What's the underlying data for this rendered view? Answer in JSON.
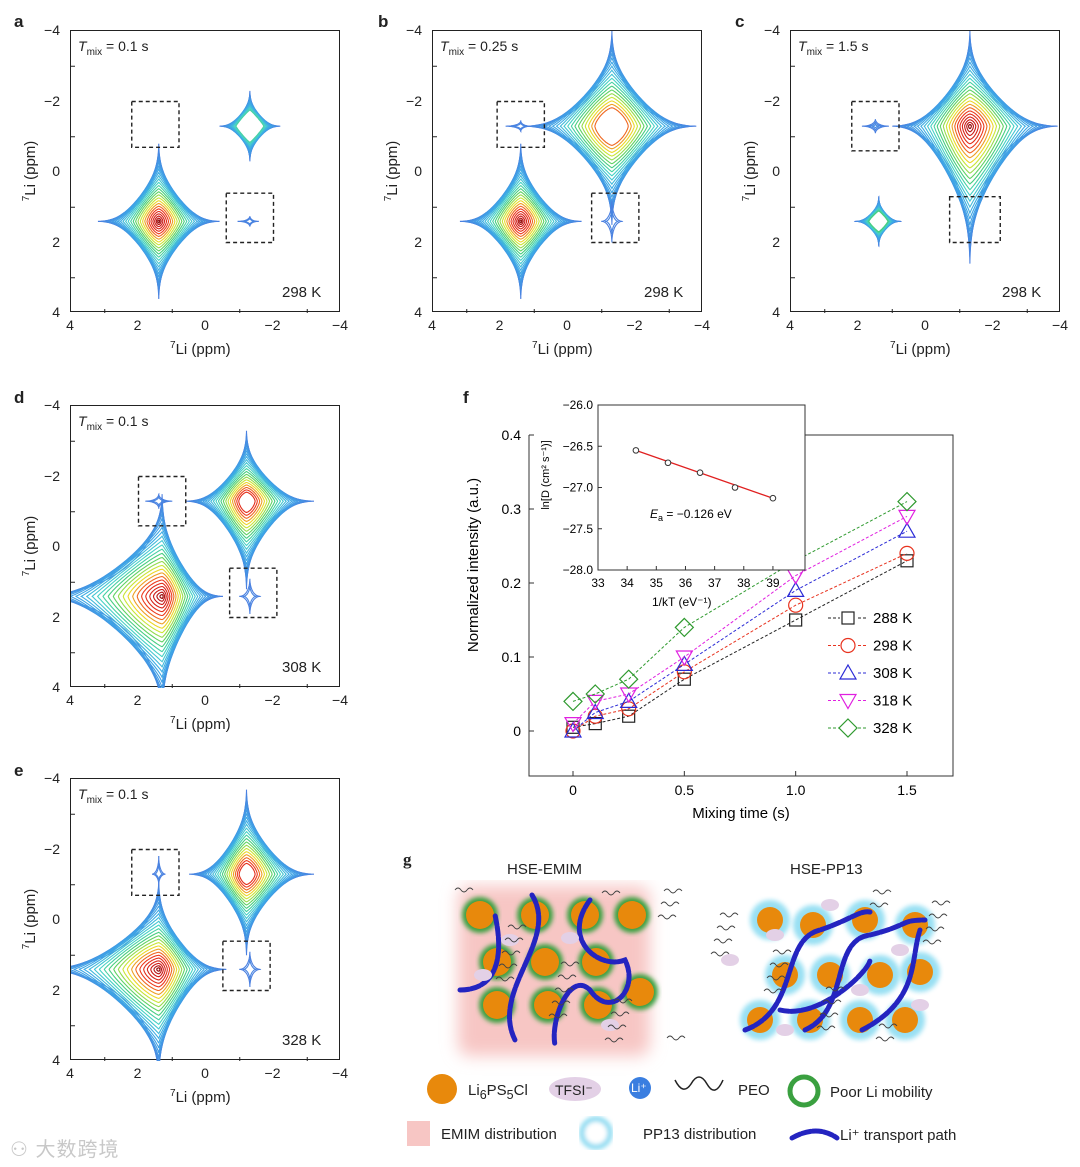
{
  "panel_letters": {
    "a": "a",
    "b": "b",
    "c": "c",
    "d": "d",
    "e": "e",
    "f": "f",
    "g": "g"
  },
  "contour_panels": [
    {
      "id": "a",
      "tmix": "0.1 s",
      "temperature": "298 K",
      "peaks": [
        {
          "x": 1.4,
          "y": 1.4,
          "ext": [
            1.8,
            1.8,
            2.2,
            2.2
          ],
          "levels": 26
        },
        {
          "x": -1.3,
          "y": -1.3,
          "ext": [
            0.9,
            0.9,
            1.0,
            1.0
          ],
          "levels": 13
        },
        {
          "x": -1.3,
          "y": 1.4,
          "ext": [
            0.35,
            0.25,
            0.15,
            0.15
          ],
          "levels": 2
        }
      ],
      "boxes": [
        [
          2.2,
          0.8,
          -2.0,
          -0.7
        ],
        [
          -0.6,
          -2.0,
          0.6,
          2.0
        ]
      ]
    },
    {
      "id": "b",
      "tmix": "0.25 s",
      "temperature": "298 K",
      "peaks": [
        {
          "x": 1.4,
          "y": 1.4,
          "ext": [
            1.8,
            1.8,
            2.2,
            2.2
          ],
          "levels": 26
        },
        {
          "x": -1.3,
          "y": -1.3,
          "ext": [
            2.6,
            2.5,
            2.7,
            2.8
          ],
          "levels": 20
        },
        {
          "x": 1.4,
          "y": -1.3,
          "ext": [
            0.45,
            0.3,
            0.15,
            0.15
          ],
          "levels": 2
        },
        {
          "x": -1.3,
          "y": 1.4,
          "ext": [
            0.3,
            0.3,
            0.6,
            0.6
          ],
          "levels": 2
        }
      ],
      "boxes": [
        [
          2.1,
          0.7,
          -2.0,
          -0.7
        ],
        [
          -0.7,
          -2.1,
          0.6,
          2.0
        ]
      ]
    },
    {
      "id": "c",
      "tmix": "1.5 s",
      "temperature": "298 K",
      "peaks": [
        {
          "x": 1.4,
          "y": 1.4,
          "ext": [
            0.7,
            0.65,
            0.7,
            0.7
          ],
          "levels": 14
        },
        {
          "x": -1.3,
          "y": -1.3,
          "ext": [
            2.3,
            2.6,
            2.7,
            3.9
          ],
          "levels": 26
        },
        {
          "x": 1.5,
          "y": -1.3,
          "ext": [
            0.4,
            0.4,
            0.2,
            0.2
          ],
          "levels": 3
        }
      ],
      "boxes": [
        [
          2.2,
          0.8,
          -2.0,
          -0.6
        ],
        [
          -0.7,
          -2.2,
          0.7,
          2.0
        ]
      ]
    },
    {
      "id": "d",
      "tmix": "0.1 s",
      "temperature": "308 K",
      "peaks": [
        {
          "x": 1.3,
          "y": 1.4,
          "ext": [
            3.8,
            1.8,
            2.9,
            3.4
          ],
          "levels": 26
        },
        {
          "x": -1.2,
          "y": -1.3,
          "ext": [
            1.8,
            2.0,
            2.0,
            2.5
          ],
          "levels": 22
        },
        {
          "x": 1.4,
          "y": -1.3,
          "ext": [
            0.4,
            0.4,
            0.2,
            0.2
          ],
          "levels": 2
        },
        {
          "x": -1.3,
          "y": 1.4,
          "ext": [
            0.3,
            0.3,
            0.5,
            0.5
          ],
          "levels": 2
        }
      ],
      "boxes": [
        [
          2.0,
          0.6,
          -2.0,
          -0.6
        ],
        [
          -0.7,
          -2.1,
          0.6,
          2.0
        ]
      ]
    },
    {
      "id": "e",
      "tmix": "0.1 s",
      "temperature": "328 K",
      "peaks": [
        {
          "x": 1.4,
          "y": 1.4,
          "ext": [
            3.5,
            2.0,
            2.5,
            3.1
          ],
          "levels": 26
        },
        {
          "x": -1.2,
          "y": -1.3,
          "ext": [
            1.7,
            2.0,
            2.4,
            2.3
          ],
          "levels": 22
        },
        {
          "x": 1.4,
          "y": -1.3,
          "ext": [
            0.2,
            0.2,
            0.5,
            0.3
          ],
          "levels": 2
        },
        {
          "x": -1.3,
          "y": 1.4,
          "ext": [
            0.3,
            0.3,
            0.5,
            0.5
          ],
          "levels": 2
        }
      ],
      "boxes": [
        [
          2.2,
          0.8,
          -2.0,
          -0.7
        ],
        [
          -0.5,
          -1.9,
          0.6,
          2.0
        ]
      ]
    }
  ],
  "contour_axes": {
    "x_ticks": [
      "4",
      "2",
      "0",
      "−2",
      "−4"
    ],
    "y_ticks": [
      "−4",
      "−2",
      "0",
      "2",
      "4"
    ],
    "x_label": "Li (ppm)",
    "y_label": "Li (ppm)",
    "isotope": "7",
    "tmix_symbol": "T",
    "tmix_sub": "mix",
    "equals": " = "
  },
  "chart_data": {
    "type": "line",
    "xlabel": "Mixing time (s)",
    "ylabel": "Normalized intensity (a.u.)",
    "xlim": [
      -0.2,
      1.62
    ],
    "ylim": [
      -0.06,
      0.4
    ],
    "x_ticks": [
      "0",
      "0.5",
      "1.0",
      "1.5"
    ],
    "x_tick_values": [
      0,
      0.5,
      1.0,
      1.5
    ],
    "y_ticks": [
      "0",
      "0.1",
      "0.2",
      "0.3",
      "0.4"
    ],
    "y_tick_values": [
      0,
      0.1,
      0.2,
      0.3,
      0.4
    ],
    "x": [
      0,
      0.1,
      0.25,
      0.5,
      1.0,
      1.5
    ],
    "legend_position": "right",
    "series": [
      {
        "name": "288 K",
        "marker": "square",
        "color": "#222222",
        "values": [
          0.005,
          0.01,
          0.02,
          0.07,
          0.15,
          0.23
        ]
      },
      {
        "name": "298 K",
        "marker": "circle",
        "color": "#e8331f",
        "values": [
          0.0,
          0.02,
          0.03,
          0.08,
          0.17,
          0.24
        ]
      },
      {
        "name": "308 K",
        "marker": "triangle-up",
        "color": "#2b2bd6",
        "values": [
          0.0,
          0.025,
          0.04,
          0.09,
          0.19,
          0.27
        ]
      },
      {
        "name": "318 K",
        "marker": "triangle-down",
        "color": "#e020e0",
        "values": [
          0.01,
          0.04,
          0.05,
          0.1,
          0.21,
          0.29
        ]
      },
      {
        "name": "328 K",
        "marker": "diamond",
        "color": "#2f9a2f",
        "values": [
          0.04,
          0.05,
          0.07,
          0.14,
          0.23,
          0.31
        ]
      }
    ],
    "inset": {
      "type": "scatter",
      "xlabel": "1/kT (eV⁻¹)",
      "ylabel": "ln[D (cm² s⁻¹)]",
      "xlim": [
        33,
        40.1
      ],
      "ylim": [
        -28.0,
        -26.0
      ],
      "x_ticks": [
        "33",
        "34",
        "35",
        "36",
        "37",
        "38",
        "39"
      ],
      "x_tick_values": [
        33,
        34,
        35,
        36,
        37,
        38,
        39
      ],
      "y_ticks": [
        "−26.0",
        "−26.5",
        "−27.0",
        "−27.5",
        "−28.0"
      ],
      "y_tick_values": [
        -26.0,
        -26.5,
        -27.0,
        -27.5,
        -28.0
      ],
      "x": [
        34.3,
        35.4,
        36.5,
        37.7,
        39.0
      ],
      "y": [
        -26.55,
        -26.7,
        -26.82,
        -27.0,
        -27.13
      ],
      "fit_color": "#e02020",
      "annotation": "E",
      "annotation_sub": "a",
      "annotation_value": " = −0.126 eV"
    }
  },
  "schematic": {
    "title_left": "HSE-EMIM",
    "title_right": "HSE-PP13",
    "legend": {
      "lpsc": "Li",
      "lpsc_6": "6",
      "lpsc_ps": "PS",
      "lpsc_5": "5",
      "lpsc_cl": "Cl",
      "tfsi": "TFSI⁻",
      "li": "Li⁺",
      "peo": "PEO",
      "poor": "Poor Li mobility",
      "emim": "EMIM distribution",
      "pp13": "PP13 distribution",
      "path": "Li⁺ transport path"
    },
    "colors": {
      "particle": "#e8890c",
      "shell": "#3aa040",
      "emim": "#f7c6c4",
      "pp13": "#7fd8f0",
      "path": "#2424c0",
      "tfsi": "#e3d0e6",
      "li": "#3a7ee0"
    }
  },
  "watermark": "大数跨境"
}
